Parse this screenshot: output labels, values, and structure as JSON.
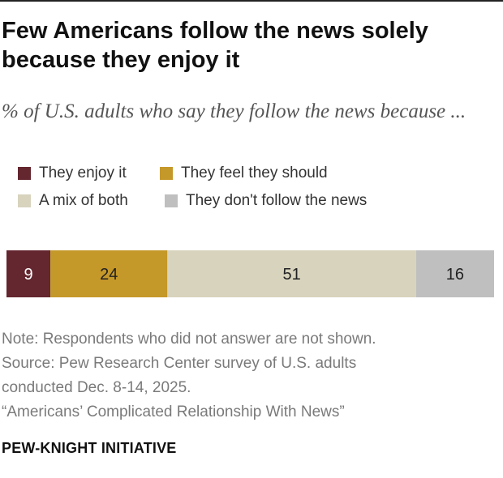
{
  "title": "Few Americans follow the news solely because they enjoy it",
  "subtitle": "% of U.S. adults who say they follow the news because ...",
  "chart_data": {
    "type": "bar",
    "stacked": true,
    "orientation": "horizontal",
    "categories": [
      ""
    ],
    "series": [
      {
        "name": "They enjoy it",
        "values": [
          9
        ],
        "color": "#64262f"
      },
      {
        "name": "They feel they should",
        "values": [
          24
        ],
        "color": "#c5982a"
      },
      {
        "name": "A mix of both",
        "values": [
          51
        ],
        "color": "#d8d3bd"
      },
      {
        "name": "They don't follow the news",
        "values": [
          16
        ],
        "color": "#bfbfbf"
      }
    ],
    "xlim": [
      0,
      100
    ],
    "grid": false,
    "legend_position": "top"
  },
  "notes": {
    "note": "Note: Respondents who did not answer are not shown.",
    "source_line1": "Source: Pew Research Center survey of U.S. adults",
    "source_line2": "conducted Dec. 8-14, 2025.",
    "report": "“Americans’ Complicated Relationship With News”"
  },
  "brand": "PEW-KNIGHT INITIATIVE"
}
